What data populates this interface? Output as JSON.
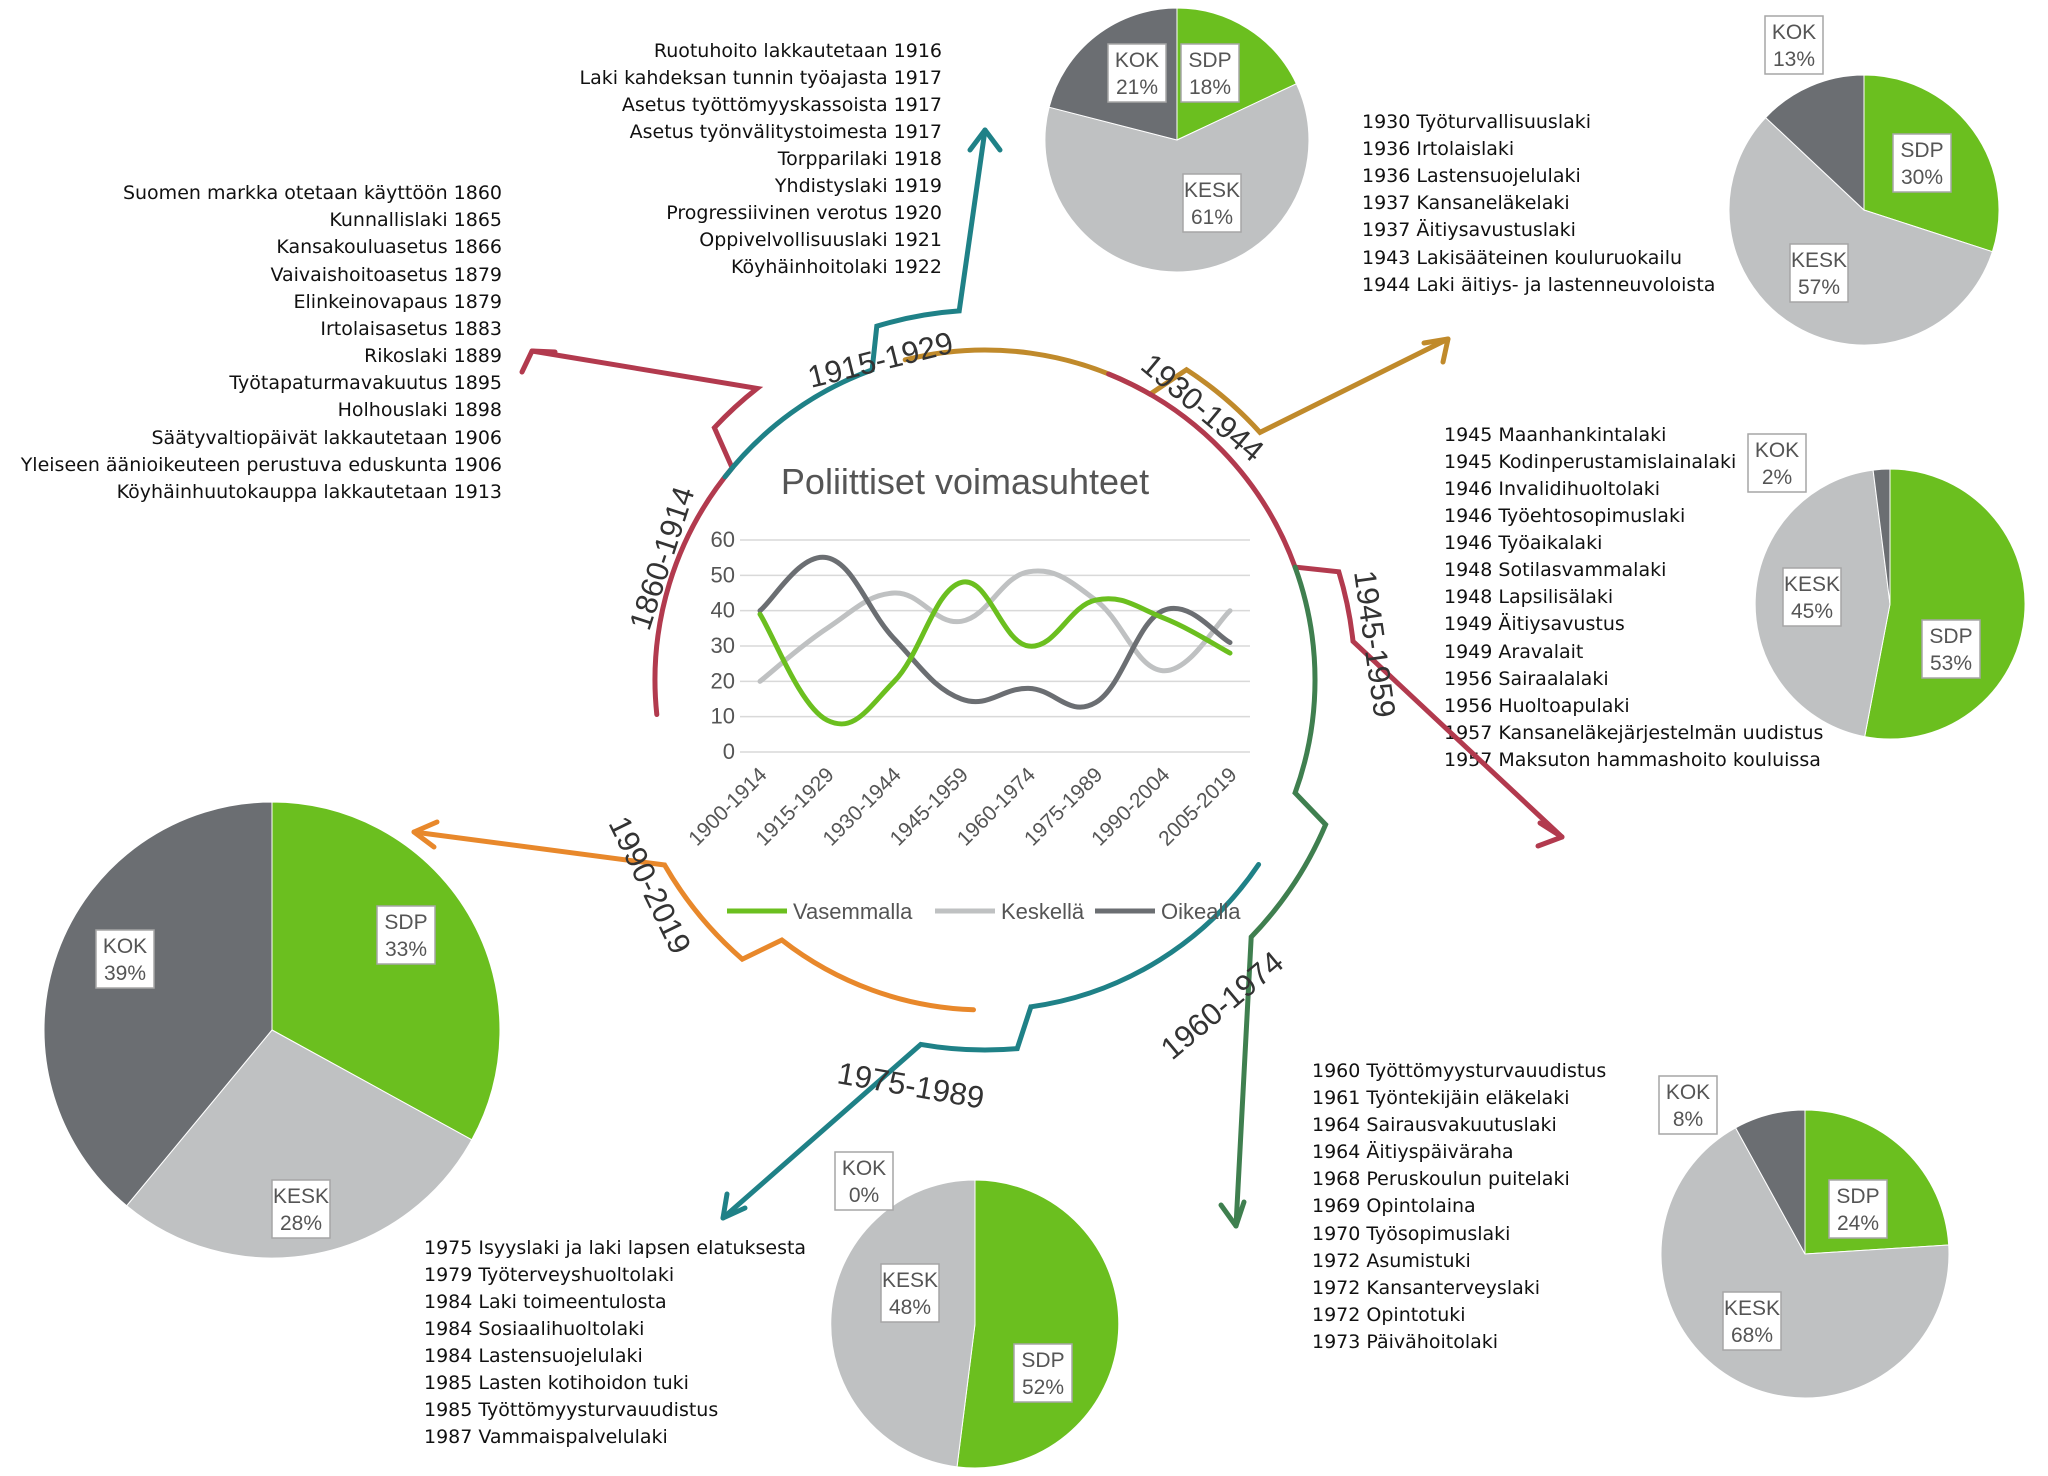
{
  "colors": {
    "green": "#6bbf1f",
    "light_gray": "#bfc1c2",
    "dark_gray": "#6b6e72",
    "teal": "#1f8187",
    "gold": "#c08a2b",
    "crimson": "#b23a4e",
    "forest": "#3f7f4f",
    "orange": "#e8882b",
    "text": "#111111"
  },
  "periods": [
    {
      "id": "1860-1914",
      "label": "1860-1914",
      "laws": [
        "Suomen markka otetaan käyttöön 1860",
        "Kunnallislaki 1865",
        "Kansakouluasetus 1866",
        "Vaivaishoitoasetus 1879",
        "Elinkeinovapaus 1879",
        "Irtolaisasetus 1883",
        "Rikoslaki 1889",
        "Työtapaturmavakuutus 1895",
        "Holhouslaki 1898",
        "Säätyvaltiopäivät lakkautetaan 1906",
        "Yleiseen äänioikeuteen perustuva eduskunta 1906",
        "Köyhäinhuutokauppa lakkautetaan 1913"
      ]
    },
    {
      "id": "1915-1929",
      "label": "1915-1929",
      "laws": [
        "Ruotuhoito lakkautetaan 1916",
        "Laki kahdeksan tunnin työajasta 1917",
        "Asetus työttömyyskassoista 1917",
        "Asetus työnvälitystoimesta 1917",
        "Torpparilaki 1918",
        "Yhdistyslaki 1919",
        "Progressiivinen verotus  1920",
        "Oppivelvollisuuslaki 1921",
        "Köyhäinhoitolaki 1922"
      ]
    },
    {
      "id": "1930-1944",
      "label": "1930-1944",
      "laws": [
        "1930 Työturvallisuuslaki",
        "1936 Irtolaislaki",
        "1936 Lastensuojelulaki",
        "1937 Kansaneläkelaki",
        "1937 Äitiysavustuslaki",
        "1943 Lakisääteinen kouluruokailu",
        "1944 Laki äitiys- ja lastenneuvoloista"
      ]
    },
    {
      "id": "1945-1959",
      "label": "1945-1959",
      "laws": [
        "1945 Maanhankintalaki",
        "1945 Kodinperustamislainalaki",
        "1946 Invalidihuoltolaki",
        "1946 Työehtosopimuslaki",
        "1946 Työaikalaki",
        "1948 Sotilasvammalaki",
        "1948 Lapsilisälaki",
        "1949 Äitiysavustus",
        "1949 Aravalait",
        "1956 Sairaalalaki",
        "1956 Huoltoapulaki",
        "1957 Kansaneläkejärjestelmän uudistus",
        "1957 Maksuton hammashoito kouluissa"
      ]
    },
    {
      "id": "1960-1974",
      "label": "1960-1974",
      "laws": [
        "1960 Työttömyysturvauudistus",
        "1961 Työntekijäin eläkelaki",
        "1964 Sairausvakuutuslaki",
        "1964 Äitiyspäiväraha",
        "1968 Peruskoulun puitelaki",
        "1969 Opintolaina",
        "1970 Työsopimuslaki",
        "1972 Asumistuki",
        "1972 Kansanterveyslaki",
        "1972 Opintotuki",
        "1973 Päivähoitolaki"
      ]
    },
    {
      "id": "1975-1989",
      "label": "1975-1989",
      "laws": [
        "1975 Isyyslaki ja laki lapsen elatuksesta",
        "1979 Työterveyshuoltolaki",
        "1984 Laki toimeentulosta",
        "1984 Sosiaalihuoltolaki",
        "1984 Lastensuojelulaki",
        "1985 Lasten kotihoidon tuki",
        "1985 Työttömyysturvauudistus",
        "1987 Vammaispalvelulaki"
      ]
    },
    {
      "id": "1990-2019",
      "label": "1990-2019",
      "laws": []
    }
  ],
  "chart_data": [
    {
      "type": "line",
      "title": "Poliittiset voimasuhteet",
      "x": [
        "1900-1914",
        "1915-1929",
        "1930-1944",
        "1945-1959",
        "1960-1974",
        "1975-1989",
        "1990-2004",
        "2005-2019"
      ],
      "ylim": [
        0,
        60
      ],
      "yticks": [
        0,
        10,
        20,
        30,
        40,
        50,
        60
      ],
      "grid": true,
      "legend_position": "bottom",
      "series": [
        {
          "name": "Vasemmalla",
          "color": "#6bbf1f",
          "values": [
            39,
            9,
            20,
            48,
            30,
            43,
            38,
            28
          ]
        },
        {
          "name": "Keskellä",
          "color": "#bfc1c2",
          "values": [
            20,
            35,
            45,
            37,
            51,
            43,
            23,
            40
          ]
        },
        {
          "name": "Oikealla",
          "color": "#6b6e72",
          "values": [
            40,
            55,
            32,
            15,
            18,
            14,
            40,
            31
          ]
        }
      ]
    },
    {
      "type": "pie",
      "period": "1915-1929",
      "slices": [
        {
          "label": "SDP",
          "value": 18,
          "text": "18%",
          "color": "#6bbf1f"
        },
        {
          "label": "KESK",
          "value": 61,
          "text": "61%",
          "color": "#bfc1c2"
        },
        {
          "label": "KOK",
          "value": 21,
          "text": "21%",
          "color": "#6b6e72"
        }
      ]
    },
    {
      "type": "pie",
      "period": "1930-1944",
      "slices": [
        {
          "label": "SDP",
          "value": 30,
          "text": "30%",
          "color": "#6bbf1f"
        },
        {
          "label": "KESK",
          "value": 57,
          "text": "57%",
          "color": "#bfc1c2"
        },
        {
          "label": "KOK",
          "value": 13,
          "text": "13%",
          "color": "#6b6e72"
        }
      ]
    },
    {
      "type": "pie",
      "period": "1945-1959",
      "slices": [
        {
          "label": "SDP",
          "value": 53,
          "text": "53%",
          "color": "#6bbf1f"
        },
        {
          "label": "KESK",
          "value": 45,
          "text": "45%",
          "color": "#bfc1c2"
        },
        {
          "label": "KOK",
          "value": 2,
          "text": "2%",
          "color": "#6b6e72"
        }
      ]
    },
    {
      "type": "pie",
      "period": "1960-1974",
      "slices": [
        {
          "label": "SDP",
          "value": 24,
          "text": "24%",
          "color": "#6bbf1f"
        },
        {
          "label": "KESK",
          "value": 68,
          "text": "68%",
          "color": "#bfc1c2"
        },
        {
          "label": "KOK",
          "value": 8,
          "text": "8%",
          "color": "#6b6e72"
        }
      ]
    },
    {
      "type": "pie",
      "period": "1975-1989",
      "slices": [
        {
          "label": "SDP",
          "value": 52,
          "text": "52%",
          "color": "#6bbf1f"
        },
        {
          "label": "KESK",
          "value": 48,
          "text": "48%",
          "color": "#bfc1c2"
        },
        {
          "label": "KOK",
          "value": 0,
          "text": "0%",
          "color": "#6b6e72"
        }
      ]
    },
    {
      "type": "pie",
      "period": "1990-2019",
      "slices": [
        {
          "label": "SDP",
          "value": 33,
          "text": "33%",
          "color": "#6bbf1f"
        },
        {
          "label": "KESK",
          "value": 28,
          "text": "28%",
          "color": "#bfc1c2"
        },
        {
          "label": "KOK",
          "value": 39,
          "text": "39%",
          "color": "#6b6e72"
        }
      ]
    }
  ]
}
